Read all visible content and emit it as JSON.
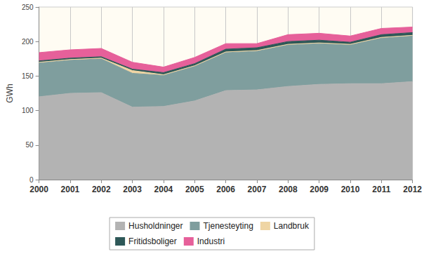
{
  "chart_data": {
    "type": "area",
    "stacked": true,
    "y_label": "GWh",
    "categories": [
      "2000",
      "2001",
      "2002",
      "2003",
      "2004",
      "2005",
      "2006",
      "2007",
      "2008",
      "2009",
      "2010",
      "2011",
      "2012"
    ],
    "series": [
      {
        "name": "Husholdninger",
        "color": "#b3b3b3",
        "values": [
          120,
          125,
          126,
          105,
          106,
          114,
          129,
          130,
          135,
          138,
          139,
          139,
          142
        ]
      },
      {
        "name": "Tjenesteyting",
        "color": "#7f9e9e",
        "values": [
          49,
          48,
          49,
          49,
          45,
          50,
          55,
          56,
          60,
          59,
          56,
          66,
          66
        ]
      },
      {
        "name": "Landbruk",
        "color": "#efd5a4",
        "values": [
          1,
          1,
          1,
          4,
          1,
          1,
          1,
          1,
          1,
          1,
          1,
          1,
          1
        ]
      },
      {
        "name": "Fritidsboliger",
        "color": "#2e5858",
        "values": [
          2,
          2,
          2,
          2,
          3,
          3,
          4,
          4,
          4,
          4,
          3,
          4,
          4
        ]
      },
      {
        "name": "Industri",
        "color": "#e6609a",
        "values": [
          12,
          12,
          12,
          10,
          8,
          9,
          8,
          6,
          10,
          10,
          9,
          9,
          8
        ]
      }
    ],
    "ylim": [
      0,
      250
    ],
    "yticks": [
      0,
      50,
      100,
      150,
      200,
      250
    ],
    "grid": true,
    "legend": "bottom"
  }
}
